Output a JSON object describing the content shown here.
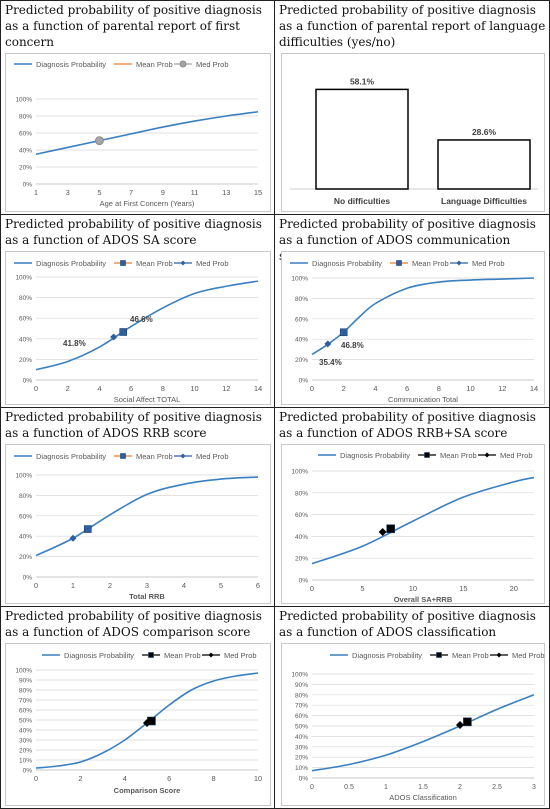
{
  "colors": {
    "curve": "#3a7fc1",
    "mean": "#ed7d31",
    "med": "#a5a5a5",
    "blue_marker": "#2e5f9e",
    "black": "#000000",
    "grid": "#d9d9d9"
  },
  "panels": [
    {
      "caption": "Predicted probability of positive diagnosis as a function of parental report of first concern",
      "chart_data": {
        "type": "line",
        "xlabel": "Age at First Concern (Years)",
        "ylabel": "",
        "legend": [
          "Diagnosis Probability",
          "Mean Prob",
          "Med Prob"
        ],
        "legend_position": "top",
        "xlim": [
          1,
          15
        ],
        "xticks": [
          "1",
          "3",
          "5",
          "7",
          "9",
          "11",
          "13",
          "15"
        ],
        "ylim": [
          0,
          100
        ],
        "yticks": [
          "0%",
          "20%",
          "40%",
          "60%",
          "80%",
          "100%"
        ],
        "series": [
          {
            "name": "Diagnosis Probability",
            "x": [
              1,
              3,
              5,
              7,
              9,
              11,
              13,
              15
            ],
            "y": [
              35,
              43,
              51,
              59,
              67,
              74,
              80,
              85
            ]
          }
        ],
        "markers": [
          {
            "name": "Med Prob",
            "x": 5,
            "y": 51,
            "shape": "circle",
            "color": "#a5a5a5"
          }
        ],
        "annotations": []
      }
    },
    {
      "caption": "Predicted probability of positive diagnosis as a function of parental report of language difficulties (yes/no)",
      "chart_data": {
        "type": "bar",
        "categories": [
          "No difficulties",
          "Language Difficulties"
        ],
        "values": [
          58.1,
          28.6
        ],
        "value_labels": [
          "58.1%",
          "28.6%"
        ],
        "xlabel": "",
        "ylabel": "",
        "ylim": [
          0,
          70
        ]
      }
    },
    {
      "caption": "Predicted probability of positive diagnosis as a function of ADOS SA score",
      "chart_data": {
        "type": "line",
        "xlabel": "Social Affect TOTAL",
        "ylabel": "",
        "legend": [
          "Diagnosis Probability",
          "Mean Prob",
          "Med Prob"
        ],
        "legend_position": "top",
        "xlim": [
          0,
          14
        ],
        "xticks": [
          "0",
          "2",
          "4",
          "6",
          "8",
          "10",
          "12",
          "14"
        ],
        "ylim": [
          0,
          100
        ],
        "yticks": [
          "0%",
          "20%",
          "40%",
          "60%",
          "80%",
          "100%"
        ],
        "series": [
          {
            "name": "Diagnosis Probability",
            "x": [
              0,
              2,
              4,
              6,
              8,
              10,
              12,
              14
            ],
            "y": [
              10,
              18,
              32,
              52,
              70,
              84,
              91,
              96
            ]
          }
        ],
        "markers": [
          {
            "name": "Mean Prob",
            "x": 5.5,
            "y": 46.6,
            "shape": "square",
            "color": "#2e5f9e"
          },
          {
            "name": "Med Prob",
            "x": 4.9,
            "y": 41.8,
            "shape": "diamond",
            "color": "#2e5f9e"
          }
        ],
        "annotations": [
          "46.6%",
          "41.8%"
        ]
      }
    },
    {
      "caption": "Predicted probability of positive diagnosis as a function of ADOS communication score",
      "chart_data": {
        "type": "line",
        "xlabel": "Communication Total",
        "ylabel": "",
        "legend": [
          "Diagnosis Probability",
          "Mean Prob",
          "Med Prob"
        ],
        "legend_position": "top",
        "xlim": [
          0,
          14
        ],
        "xticks": [
          "0",
          "2",
          "4",
          "6",
          "8",
          "10",
          "12",
          "14"
        ],
        "ylim": [
          0,
          100
        ],
        "yticks": [
          "0%",
          "20%",
          "40%",
          "60%",
          "80%",
          "100%"
        ],
        "series": [
          {
            "name": "Diagnosis Probability",
            "x": [
              0,
              1,
              2,
              3,
              4,
              6,
              8,
              10,
              12,
              14
            ],
            "y": [
              25,
              35,
              47,
              62,
              75,
              90,
              96,
              98,
              99,
              100
            ]
          }
        ],
        "markers": [
          {
            "name": "Mean Prob",
            "x": 2,
            "y": 46.8,
            "shape": "square",
            "color": "#2e5f9e"
          },
          {
            "name": "Med Prob",
            "x": 1,
            "y": 35.4,
            "shape": "diamond",
            "color": "#2e5f9e"
          }
        ],
        "annotations": [
          "46.8%",
          "35.4%"
        ]
      }
    },
    {
      "caption": "Predicted probability of positive diagnosis as a function of ADOS RRB score",
      "chart_data": {
        "type": "line",
        "xlabel": "Total RRB",
        "ylabel": "",
        "legend": [
          "Diagnosis Probability",
          "Mean Prob",
          "Med Prob"
        ],
        "legend_position": "top",
        "xlim": [
          0,
          6
        ],
        "xticks": [
          "0",
          "1",
          "2",
          "3",
          "4",
          "5",
          "6"
        ],
        "ylim": [
          0,
          100
        ],
        "yticks": [
          "0%",
          "20%",
          "40%",
          "60%",
          "80%",
          "100%"
        ],
        "series": [
          {
            "name": "Diagnosis Probability",
            "x": [
              0,
              1,
              2,
              3,
              4,
              5,
              6
            ],
            "y": [
              21,
              38,
              61,
              81,
              91,
              96,
              98
            ]
          }
        ],
        "markers": [
          {
            "name": "Mean Prob",
            "x": 1.4,
            "y": 47,
            "shape": "square",
            "color": "#2e5f9e"
          },
          {
            "name": "Med Prob",
            "x": 1,
            "y": 38,
            "shape": "diamond",
            "color": "#2e5f9e"
          }
        ],
        "annotations": []
      }
    },
    {
      "caption": "Predicted probability of positive diagnosis as a function of ADOS RRB+SA score",
      "chart_data": {
        "type": "line",
        "xlabel": "Overall SA+RRB",
        "ylabel": "",
        "legend": [
          "Diagnosis Probability",
          "Mean Prob",
          "Med Prob"
        ],
        "legend_position": "top",
        "xlim": [
          0,
          22
        ],
        "xticks": [
          "0",
          "5",
          "10",
          "15",
          "20"
        ],
        "ylim": [
          0,
          100
        ],
        "yticks": [
          "0%",
          "20%",
          "40%",
          "60%",
          "80%",
          "100%"
        ],
        "series": [
          {
            "name": "Diagnosis Probability",
            "x": [
              0,
              5,
              10,
              15,
              20,
              22
            ],
            "y": [
              15,
              31,
              54,
              76,
              90,
              94
            ]
          }
        ],
        "markers": [
          {
            "name": "Mean Prob",
            "x": 7.8,
            "y": 47,
            "shape": "square",
            "color": "#000000"
          },
          {
            "name": "Med Prob",
            "x": 7,
            "y": 44,
            "shape": "diamond",
            "color": "#000000"
          }
        ],
        "annotations": []
      }
    },
    {
      "caption": "Predicted probability of positive diagnosis as a function of ADOS comparison score",
      "chart_data": {
        "type": "line",
        "xlabel": "Comparison Score",
        "ylabel": "",
        "legend": [
          "Diagnosis Probability",
          "Mean Prob",
          "Med Prob"
        ],
        "legend_position": "top",
        "xlim": [
          0,
          10
        ],
        "xticks": [
          "0",
          "2",
          "4",
          "6",
          "8",
          "10"
        ],
        "ylim": [
          0,
          100
        ],
        "yticks": [
          "0%",
          "10%",
          "20%",
          "30%",
          "40%",
          "50%",
          "60%",
          "70%",
          "80%",
          "90%",
          "100%"
        ],
        "series": [
          {
            "name": "Diagnosis Probability",
            "x": [
              0,
              1,
              2,
              3,
              4,
              5,
              6,
              7,
              8,
              9,
              10
            ],
            "y": [
              2,
              4,
              8,
              17,
              30,
              47,
              65,
              80,
              89,
              94,
              97
            ]
          }
        ],
        "markers": [
          {
            "name": "Mean Prob",
            "x": 5.2,
            "y": 49,
            "shape": "square",
            "color": "#000000"
          },
          {
            "name": "Med Prob",
            "x": 5,
            "y": 47,
            "shape": "diamond",
            "color": "#000000"
          }
        ],
        "annotations": []
      }
    },
    {
      "caption": "Predicted probability of positive diagnosis as a function of ADOS classification",
      "chart_data": {
        "type": "line",
        "xlabel": "ADOS Classification",
        "ylabel": "",
        "legend": [
          "Diagnosis Probability",
          "Mean Prob",
          "Med Prob"
        ],
        "legend_position": "top",
        "xlim": [
          0,
          3
        ],
        "xticks": [
          "0",
          "0.5",
          "1",
          "1.5",
          "2",
          "2.5",
          "3"
        ],
        "ylim": [
          0,
          100
        ],
        "yticks": [
          "0%",
          "10%",
          "20%",
          "30%",
          "40%",
          "50%",
          "60%",
          "70%",
          "80%",
          "90%",
          "100%"
        ],
        "series": [
          {
            "name": "Diagnosis Probability",
            "x": [
              0,
              0.5,
              1,
              1.5,
              2,
              2.5,
              3
            ],
            "y": [
              7,
              13,
              22,
              35,
              50,
              66,
              80
            ]
          }
        ],
        "markers": [
          {
            "name": "Mean Prob",
            "x": 2.1,
            "y": 54,
            "shape": "square",
            "color": "#000000"
          },
          {
            "name": "Med Prob",
            "x": 2,
            "y": 51,
            "shape": "diamond",
            "color": "#000000"
          }
        ],
        "annotations": []
      }
    }
  ]
}
